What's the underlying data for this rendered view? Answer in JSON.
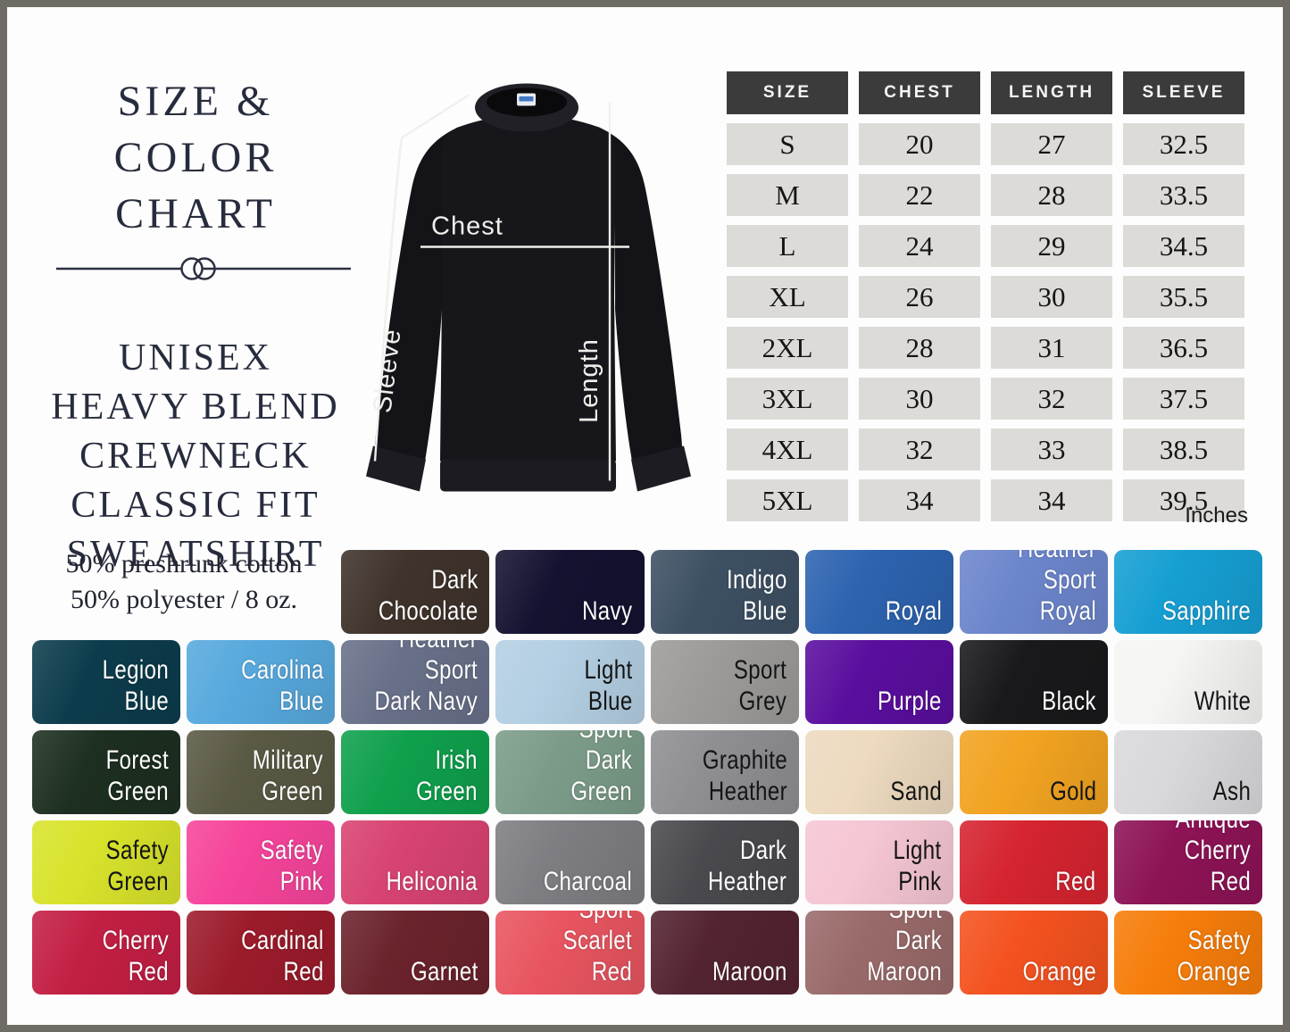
{
  "frame": {
    "border_color": "#6e6b64",
    "background": "#fdfdfd"
  },
  "title": {
    "line1": "SIZE & COLOR",
    "line2": "CHART"
  },
  "subtitle": {
    "lines": [
      "UNISEX",
      "HEAVY BLEND",
      "CREWNECK",
      "CLASSIC FIT",
      "SWEATSHIRT"
    ]
  },
  "fabric_note": {
    "line1": "50% preshrunk cotton",
    "line2": "50% polyester / 8 oz."
  },
  "garment_diagram": {
    "garment": "black crewneck sweatshirt front view",
    "garment_color": "#17171b",
    "measure_line_color": "#f0efec",
    "chest_label": "Chest",
    "sleeve_label": "Sleeve",
    "length_label": "Length"
  },
  "size_table": {
    "headers": [
      "SIZE",
      "CHEST",
      "LENGTH",
      "SLEEVE"
    ],
    "rows": [
      [
        "S",
        "20",
        "27",
        "32.5"
      ],
      [
        "M",
        "22",
        "28",
        "33.5"
      ],
      [
        "L",
        "24",
        "29",
        "34.5"
      ],
      [
        "XL",
        "26",
        "30",
        "35.5"
      ],
      [
        "2XL",
        "28",
        "31",
        "36.5"
      ],
      [
        "3XL",
        "30",
        "32",
        "37.5"
      ],
      [
        "4XL",
        "32",
        "33",
        "38.5"
      ],
      [
        "5XL",
        "34",
        "34",
        "39.5"
      ]
    ],
    "unit_note": "Inches",
    "header_bg": "#3b3b3b",
    "cell_bg": "#dcdbd7"
  },
  "color_chart": {
    "swatches": [
      {
        "name": "Dark Chocolate",
        "label": "Dark\nChocolate",
        "hex": "#3f332b",
        "text": "light",
        "row": 1,
        "col": 3
      },
      {
        "name": "Navy",
        "label": "Navy",
        "hex": "#131331",
        "text": "light",
        "row": 1,
        "col": 4
      },
      {
        "name": "Indigo Blue",
        "label": "Indigo\nBlue",
        "hex": "#3d5063",
        "text": "light",
        "row": 1,
        "col": 5
      },
      {
        "name": "Royal",
        "label": "Royal",
        "hex": "#2d63b0",
        "text": "light",
        "row": 1,
        "col": 6
      },
      {
        "name": "Heather Sport Royal",
        "label": "Heather\nSport Royal",
        "hex": "#6c86cc",
        "text": "light",
        "row": 1,
        "col": 7
      },
      {
        "name": "Sapphire",
        "label": "Sapphire",
        "hex": "#169fd3",
        "text": "light",
        "row": 1,
        "col": 8
      },
      {
        "name": "Legion Blue",
        "label": "Legion\nBlue",
        "hex": "#0c3c4c",
        "text": "light",
        "row": 2,
        "col": 1
      },
      {
        "name": "Carolina Blue",
        "label": "Carolina\nBlue",
        "hex": "#57a9dd",
        "text": "light",
        "row": 2,
        "col": 2
      },
      {
        "name": "Heather Sport Dark Navy",
        "label": "Heather Sport\nDark Navy",
        "hex": "#687089",
        "text": "light",
        "row": 2,
        "col": 3
      },
      {
        "name": "Light Blue",
        "label": "Light\nBlue",
        "hex": "#b4cfe3",
        "text": "dark",
        "row": 2,
        "col": 4
      },
      {
        "name": "Sport Grey",
        "label": "Sport\nGrey",
        "hex": "#9c9b99",
        "text": "dark",
        "row": 2,
        "col": 5
      },
      {
        "name": "Purple",
        "label": "Purple",
        "hex": "#5a0e9e",
        "text": "light",
        "row": 2,
        "col": 6
      },
      {
        "name": "Black",
        "label": "Black",
        "hex": "#19191b",
        "text": "light",
        "row": 2,
        "col": 7
      },
      {
        "name": "White",
        "label": "White",
        "hex": "#f5f5f4",
        "text": "dark",
        "row": 2,
        "col": 8
      },
      {
        "name": "Forest Green",
        "label": "Forest\nGreen",
        "hex": "#1d2f20",
        "text": "light",
        "row": 3,
        "col": 1
      },
      {
        "name": "Military Green",
        "label": "Military\nGreen",
        "hex": "#5a5944",
        "text": "light",
        "row": 3,
        "col": 2
      },
      {
        "name": "Irish Green",
        "label": "Irish\nGreen",
        "hex": "#0fa04c",
        "text": "light",
        "row": 3,
        "col": 3
      },
      {
        "name": "Heather Sport Dark Green",
        "label": "Heather Sport\nDark Green",
        "hex": "#7c9c89",
        "text": "light",
        "row": 3,
        "col": 4
      },
      {
        "name": "Graphite Heather",
        "label": "Graphite\nHeather",
        "hex": "#8f8e92",
        "text": "dark",
        "row": 3,
        "col": 5
      },
      {
        "name": "Sand",
        "label": "Sand",
        "hex": "#eddabf",
        "text": "dark",
        "row": 3,
        "col": 6
      },
      {
        "name": "Gold",
        "label": "Gold",
        "hex": "#f2a321",
        "text": "dark",
        "row": 3,
        "col": 7
      },
      {
        "name": "Ash",
        "label": "Ash",
        "hex": "#d9d9dc",
        "text": "dark",
        "row": 3,
        "col": 8
      },
      {
        "name": "Safety Green",
        "label": "Safety\nGreen",
        "hex": "#d8e32b",
        "text": "dark",
        "row": 4,
        "col": 1
      },
      {
        "name": "Safety Pink",
        "label": "Safety\nPink",
        "hex": "#f6449b",
        "text": "light",
        "row": 4,
        "col": 2
      },
      {
        "name": "Heliconia",
        "label": "Heliconia",
        "hex": "#d84371",
        "text": "light",
        "row": 4,
        "col": 3
      },
      {
        "name": "Charcoal",
        "label": "Charcoal",
        "hex": "#7e7d82",
        "text": "light",
        "row": 4,
        "col": 4
      },
      {
        "name": "Dark Heather",
        "label": "Dark\nHeather",
        "hex": "#4a494e",
        "text": "light",
        "row": 4,
        "col": 5
      },
      {
        "name": "Light Pink",
        "label": "Light\nPink",
        "hex": "#f5c6d3",
        "text": "dark",
        "row": 4,
        "col": 6
      },
      {
        "name": "Red",
        "label": "Red",
        "hex": "#d52430",
        "text": "light",
        "row": 4,
        "col": 7
      },
      {
        "name": "Antique Cherry Red",
        "label": "Antique\nCherry Red",
        "hex": "#8d1356",
        "text": "light",
        "row": 4,
        "col": 8
      },
      {
        "name": "Cherry Red",
        "label": "Cherry\nRed",
        "hex": "#c31f44",
        "text": "light",
        "row": 5,
        "col": 1
      },
      {
        "name": "Cardinal Red",
        "label": "Cardinal\nRed",
        "hex": "#9c1b2b",
        "text": "light",
        "row": 5,
        "col": 2
      },
      {
        "name": "Garnet",
        "label": "Garnet",
        "hex": "#6b232c",
        "text": "light",
        "row": 5,
        "col": 3
      },
      {
        "name": "Heather Sport Scarlet Red",
        "label": "Heather Sport\nScarlet Red",
        "hex": "#e85560",
        "text": "light",
        "row": 5,
        "col": 4
      },
      {
        "name": "Maroon",
        "label": "Maroon",
        "hex": "#532330",
        "text": "light",
        "row": 5,
        "col": 5
      },
      {
        "name": "Heather Sport Dark Maroon",
        "label": "Heather Sport\nDark Maroon",
        "hex": "#9a6a6a",
        "text": "light",
        "row": 5,
        "col": 6
      },
      {
        "name": "Orange",
        "label": "Orange",
        "hex": "#f4521f",
        "text": "light",
        "row": 5,
        "col": 7
      },
      {
        "name": "Safety Orange",
        "label": "Safety\nOrange",
        "hex": "#f67d0a",
        "text": "light",
        "row": 5,
        "col": 8
      }
    ]
  }
}
